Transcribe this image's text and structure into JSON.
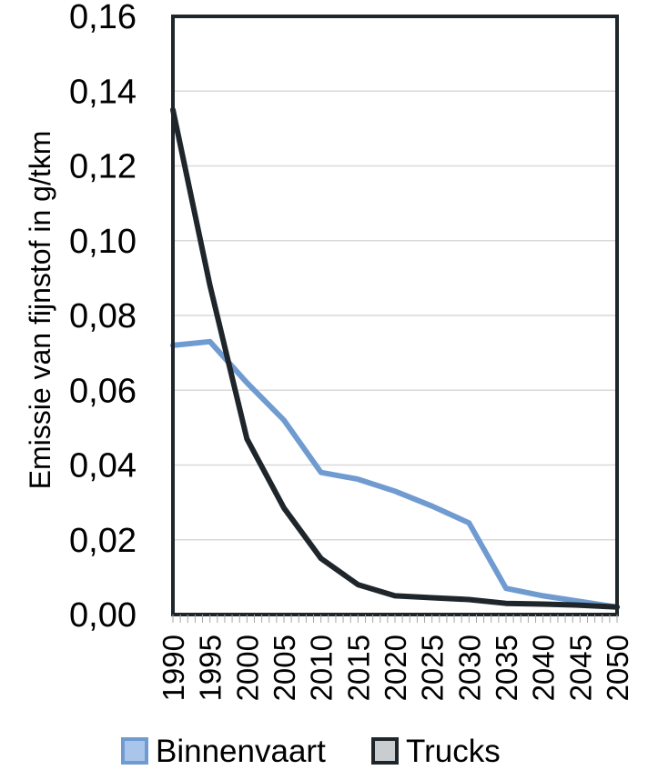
{
  "chart_data": {
    "type": "line",
    "title": "",
    "xlabel": "",
    "ylabel": "Emissie van fijnstof in g/tkm",
    "ylim": [
      0,
      0.16
    ],
    "yticks": [
      0,
      0.02,
      0.04,
      0.06,
      0.08,
      0.1,
      0.12,
      0.14,
      0.16
    ],
    "ytick_labels": [
      "0,00",
      "0,02",
      "0,04",
      "0,06",
      "0,08",
      "0,10",
      "0,12",
      "0,14",
      "0,16"
    ],
    "xlim": [
      1990,
      2050
    ],
    "xtick_labels": [
      "1990",
      "1995",
      "2000",
      "2005",
      "2010",
      "2015",
      "2020",
      "2025",
      "2030",
      "2035",
      "2040",
      "2045",
      "2050"
    ],
    "grid": true,
    "legend_position": "bottom",
    "series": [
      {
        "name": "Binnenvaart",
        "color": "#6f9bd1",
        "x": [
          1990,
          1995,
          2000,
          2005,
          2010,
          2015,
          2020,
          2025,
          2030,
          2035,
          2040,
          2045,
          2050
        ],
        "values": [
          0.072,
          0.073,
          0.062,
          0.052,
          0.038,
          0.0362,
          0.033,
          0.029,
          0.0245,
          0.007,
          0.005,
          0.0035,
          0.002
        ]
      },
      {
        "name": "Trucks",
        "color": "#1f262b",
        "x": [
          1990,
          1995,
          2000,
          2005,
          2010,
          2015,
          2020,
          2025,
          2030,
          2035,
          2040,
          2045,
          2050
        ],
        "values": [
          0.135,
          0.088,
          0.047,
          0.0285,
          0.015,
          0.008,
          0.005,
          0.0045,
          0.004,
          0.003,
          0.0028,
          0.0025,
          0.002
        ]
      }
    ]
  }
}
